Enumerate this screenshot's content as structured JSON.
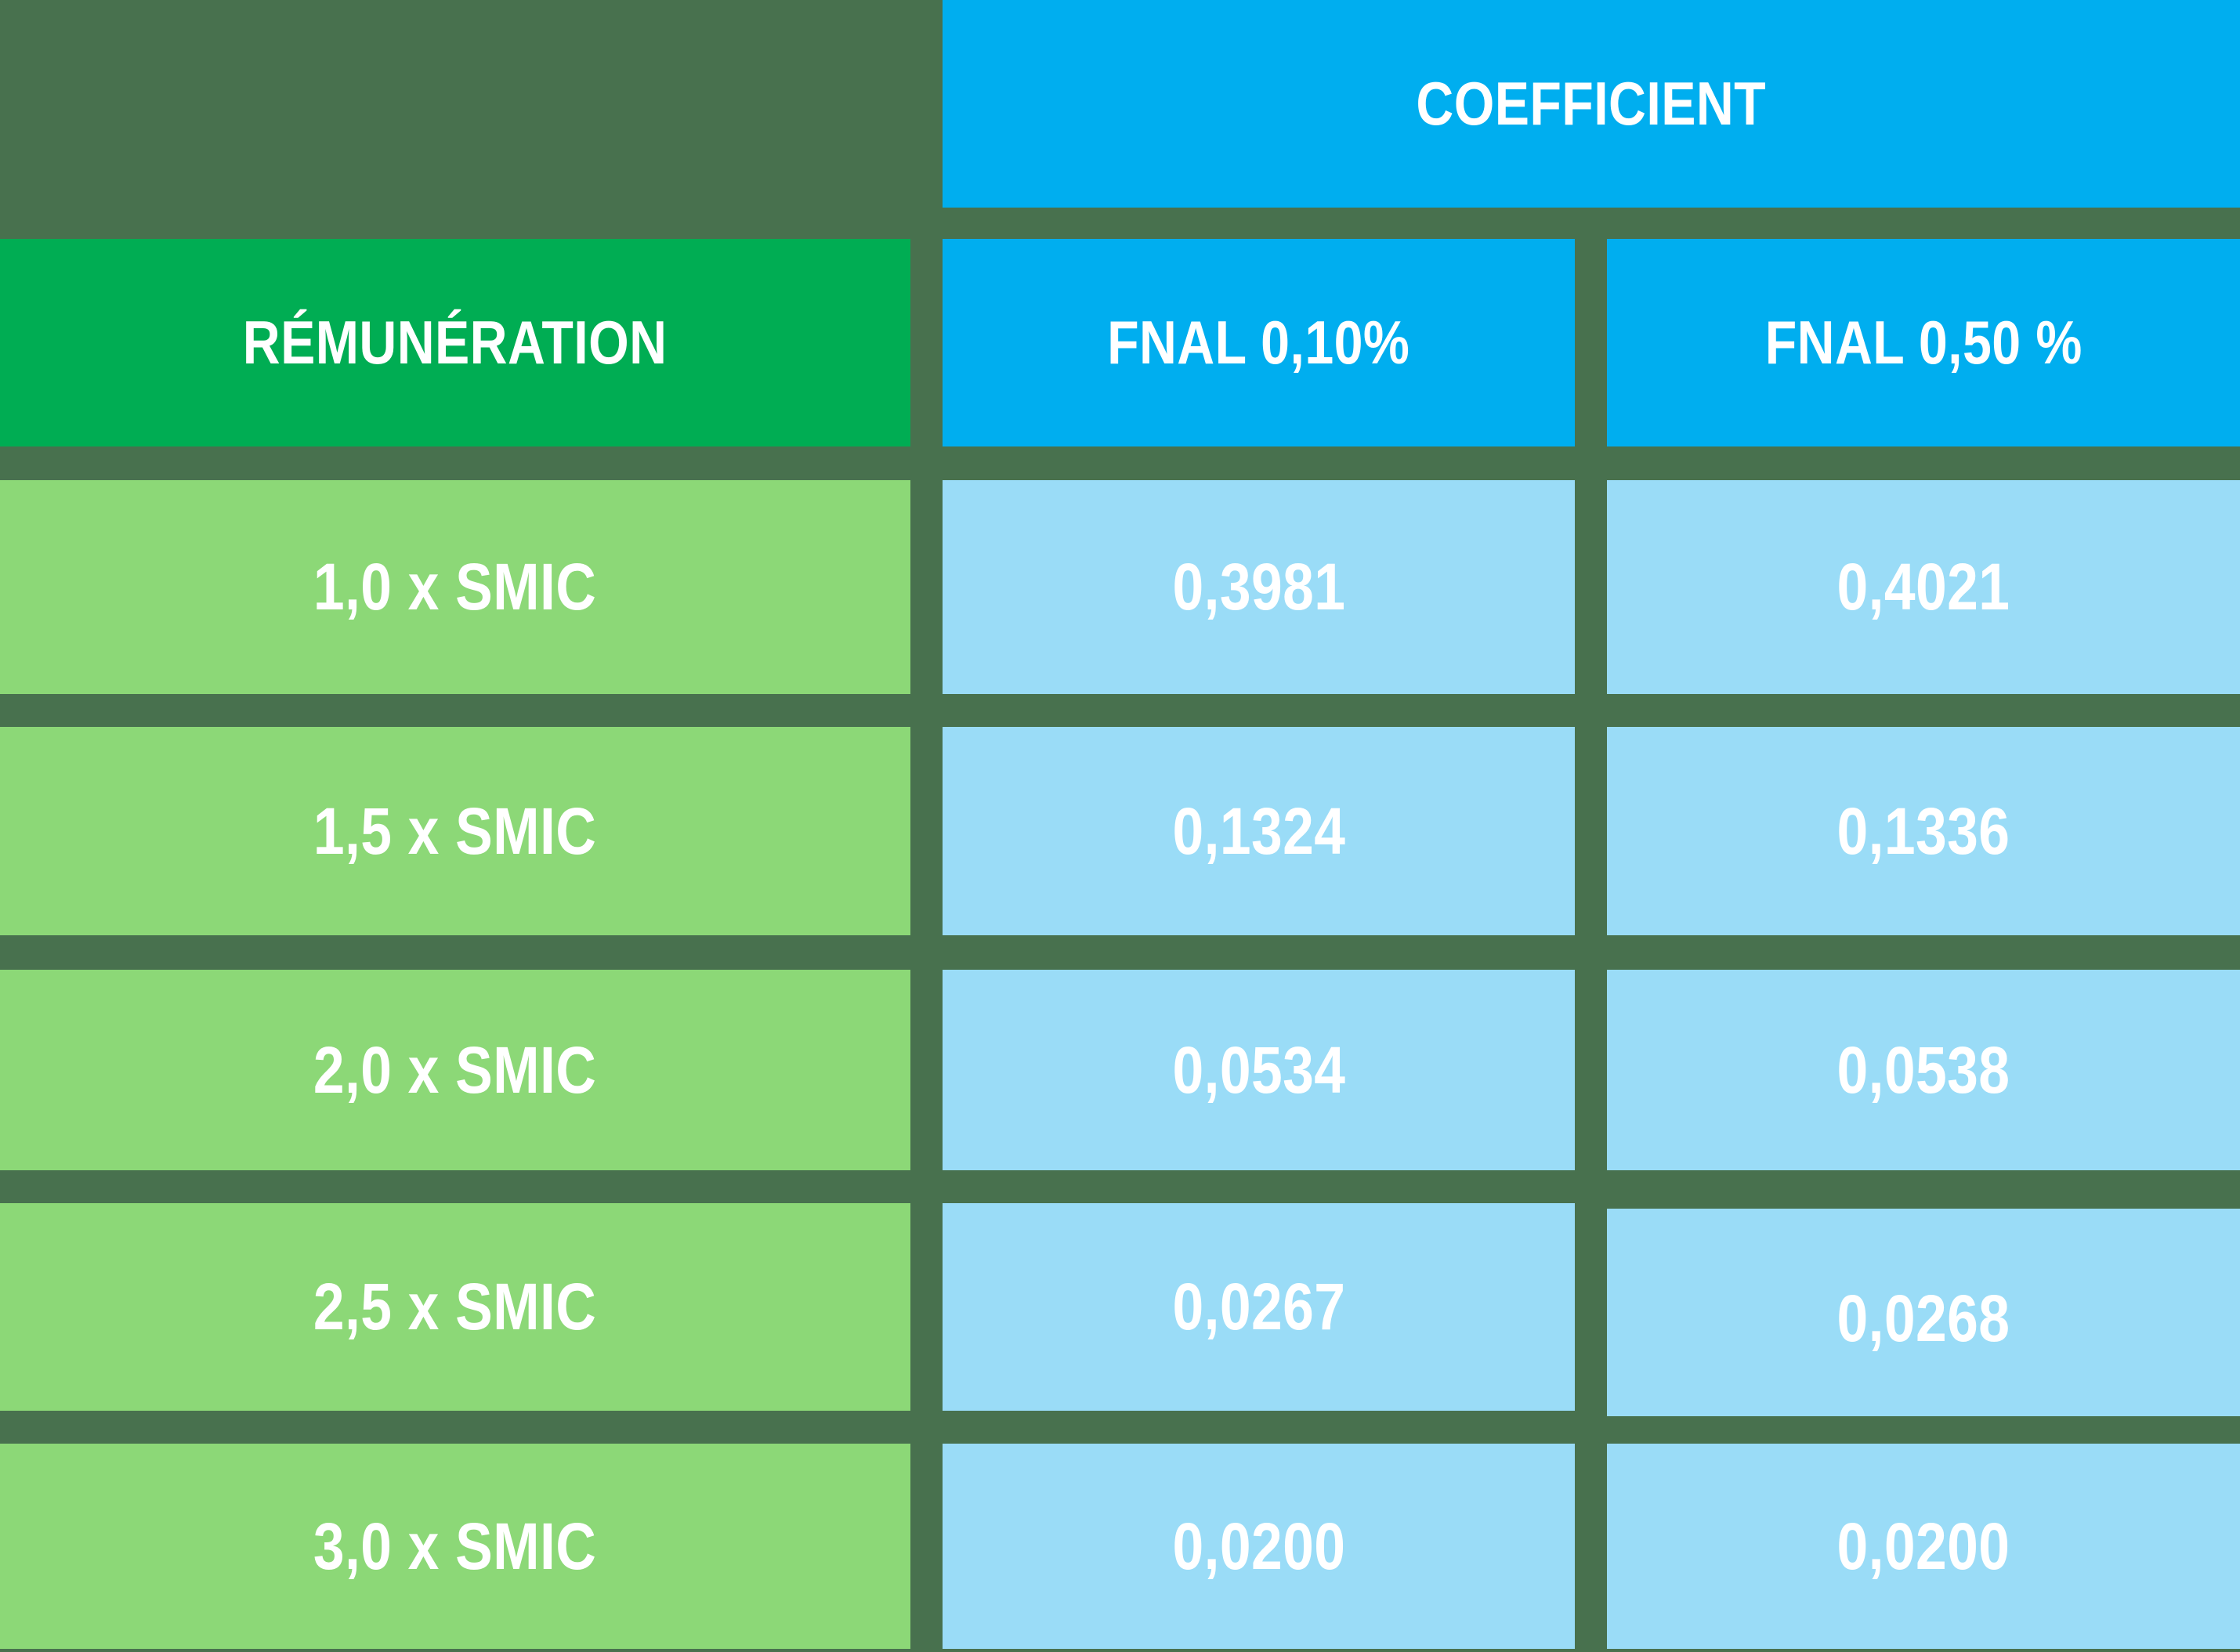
{
  "table": {
    "group_header": "COEFFICIENT",
    "row_header": "RÉMUNÉRATION",
    "col_headers": [
      "FNAL 0,10%",
      "FNAL 0,50 %"
    ],
    "rows": [
      {
        "label": "1,0 x SMIC",
        "fnal_010": "0,3981",
        "fnal_050": "0,4021"
      },
      {
        "label": "1,5 x SMIC",
        "fnal_010": "0,1324",
        "fnal_050": "0,1336"
      },
      {
        "label": "2,0 x SMIC",
        "fnal_010": "0,0534",
        "fnal_050": "0,0538"
      },
      {
        "label": "2,5 x SMIC",
        "fnal_010": "0,0267",
        "fnal_050": "0,0268"
      },
      {
        "label": "3,0 x SMIC",
        "fnal_010": "0,0200",
        "fnal_050": "0,0200"
      }
    ]
  },
  "colors": {
    "background": "#48714E",
    "header_blue": "#00AEEF",
    "header_green": "#00AD53",
    "cell_light_green": "#8CD877",
    "cell_light_blue": "#9ADCF7",
    "text": "#FFFFFF"
  },
  "chart_data": {
    "type": "table",
    "title": "COEFFICIENT",
    "columns": [
      "RÉMUNÉRATION",
      "FNAL 0,10%",
      "FNAL 0,50 %"
    ],
    "rows": [
      [
        "1,0 x SMIC",
        "0,3981",
        "0,4021"
      ],
      [
        "1,5 x SMIC",
        "0,1324",
        "0,1336"
      ],
      [
        "2,0 x SMIC",
        "0,0534",
        "0,0538"
      ],
      [
        "2,5 x SMIC",
        "0,0267",
        "0,0268"
      ],
      [
        "3,0 x SMIC",
        "0,0200",
        "0,0200"
      ]
    ],
    "values_numeric": {
      "smic_multiples": [
        1.0,
        1.5,
        2.0,
        2.5,
        3.0
      ],
      "fnal_0_10_pct_coefficients": [
        0.3981,
        0.1324,
        0.0534,
        0.0267,
        0.02
      ],
      "fnal_0_50_pct_coefficients": [
        0.4021,
        0.1336,
        0.0538,
        0.0268,
        0.02
      ]
    },
    "layout": "grid of rounded table tiles on dark green background; first column green, coefficient columns blue"
  }
}
